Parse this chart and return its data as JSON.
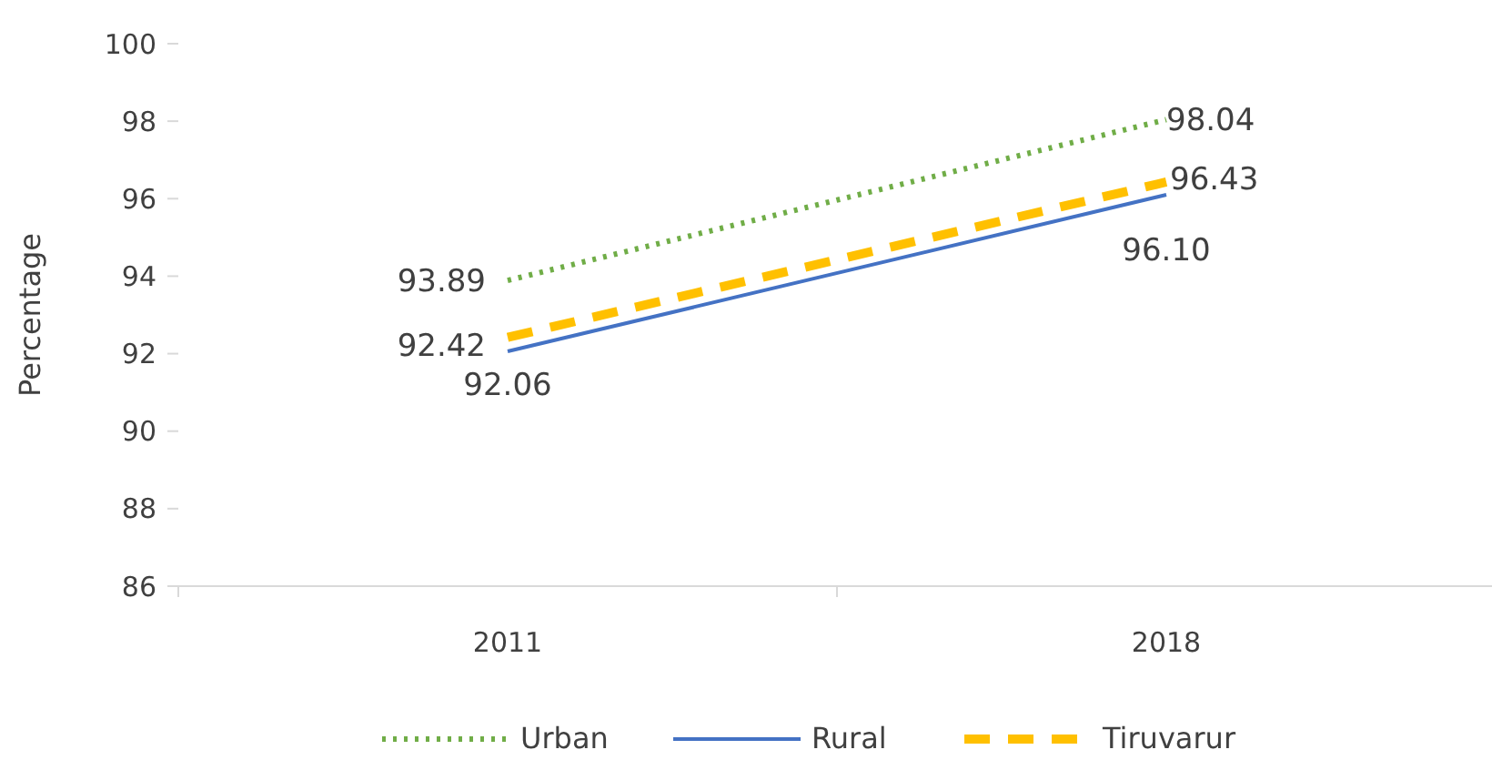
{
  "chart_data": {
    "type": "line",
    "ylabel": "Percentage",
    "categories": [
      "2011",
      "2018"
    ],
    "series": [
      {
        "name": "Urban",
        "color": "#70ad47",
        "line_style": "dotted",
        "values": [
          93.89,
          98.04
        ],
        "value_labels": [
          "93.89",
          "98.04"
        ]
      },
      {
        "name": "Rural",
        "color": "#4472c4",
        "line_style": "solid",
        "values": [
          92.06,
          96.1
        ],
        "value_labels": [
          "92.06",
          "96.10"
        ]
      },
      {
        "name": "Tiruvarur",
        "color": "#ffc000",
        "line_style": "dashed",
        "values": [
          92.42,
          96.43
        ],
        "value_labels": [
          "92.42",
          "96.43"
        ]
      }
    ],
    "ylim": [
      86,
      100
    ],
    "yticks": [
      86,
      88,
      90,
      92,
      94,
      96,
      98,
      100
    ],
    "legend": "bottom"
  }
}
